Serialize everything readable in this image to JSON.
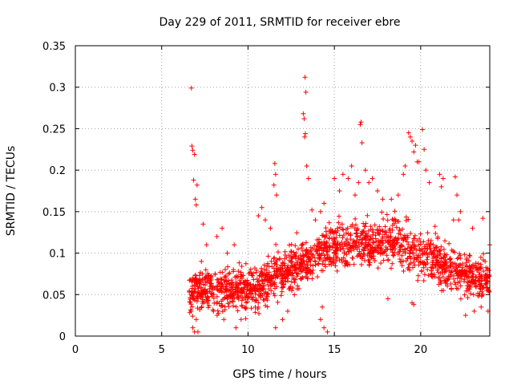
{
  "chart_data": {
    "type": "scatter",
    "title": "Day 229 of 2011, SRMTID for receiver ebre",
    "xlabel": "GPS time / hours",
    "ylabel": "SRMTID / TECUs",
    "xlim": [
      0,
      24
    ],
    "ylim": [
      0,
      0.35
    ],
    "xticks": [
      0,
      5,
      10,
      15,
      20
    ],
    "yticks": [
      0,
      0.05,
      0.1,
      0.15,
      0.2,
      0.25,
      0.3,
      0.35
    ],
    "grid": true,
    "marker": "+",
    "color": "#ff0000",
    "series": [
      {
        "name": "SRMTID",
        "points": [
          [
            6.72,
            0.299
          ],
          [
            6.75,
            0.229
          ],
          [
            6.8,
            0.224
          ],
          [
            6.85,
            0.188
          ],
          [
            6.9,
            0.219
          ],
          [
            6.95,
            0.165
          ],
          [
            7.0,
            0.158
          ],
          [
            7.05,
            0.182
          ],
          [
            6.8,
            0.01
          ],
          [
            6.9,
            0.005
          ],
          [
            7.0,
            0.02
          ],
          [
            7.1,
            0.005
          ],
          [
            7.4,
            0.135
          ],
          [
            7.6,
            0.11
          ],
          [
            7.3,
            0.09
          ],
          [
            7.5,
            0.07
          ],
          [
            8.2,
            0.12
          ],
          [
            8.5,
            0.13
          ],
          [
            8.8,
            0.1
          ],
          [
            9.2,
            0.11
          ],
          [
            8.0,
            0.03
          ],
          [
            8.6,
            0.02
          ],
          [
            9.3,
            0.01
          ],
          [
            9.6,
            0.02
          ],
          [
            10.6,
            0.145
          ],
          [
            10.8,
            0.155
          ],
          [
            11.0,
            0.14
          ],
          [
            11.3,
            0.13
          ],
          [
            11.5,
            0.182
          ],
          [
            11.55,
            0.208
          ],
          [
            11.6,
            0.195
          ],
          [
            11.65,
            0.17
          ],
          [
            11.6,
            0.01
          ],
          [
            12.0,
            0.02
          ],
          [
            12.3,
            0.03
          ],
          [
            13.2,
            0.268
          ],
          [
            13.25,
            0.262
          ],
          [
            13.3,
            0.312
          ],
          [
            13.35,
            0.294
          ],
          [
            13.28,
            0.24
          ],
          [
            13.32,
            0.244
          ],
          [
            13.4,
            0.205
          ],
          [
            13.5,
            0.19
          ],
          [
            13.7,
            0.152
          ],
          [
            13.9,
            0.14
          ],
          [
            14.2,
            0.15
          ],
          [
            14.4,
            0.16
          ],
          [
            14.2,
            0.02
          ],
          [
            14.4,
            0.01
          ],
          [
            14.6,
            0.005
          ],
          [
            14.3,
            0.035
          ],
          [
            15.0,
            0.19
          ],
          [
            15.3,
            0.175
          ],
          [
            15.5,
            0.195
          ],
          [
            15.8,
            0.19
          ],
          [
            16.0,
            0.205
          ],
          [
            16.2,
            0.17
          ],
          [
            16.4,
            0.185
          ],
          [
            16.55,
            0.258
          ],
          [
            16.5,
            0.255
          ],
          [
            16.6,
            0.233
          ],
          [
            16.8,
            0.2
          ],
          [
            17.0,
            0.185
          ],
          [
            17.2,
            0.19
          ],
          [
            17.5,
            0.175
          ],
          [
            17.8,
            0.165
          ],
          [
            18.3,
            0.165
          ],
          [
            18.7,
            0.17
          ],
          [
            19.0,
            0.195
          ],
          [
            19.1,
            0.205
          ],
          [
            19.3,
            0.245
          ],
          [
            19.4,
            0.24
          ],
          [
            19.5,
            0.235
          ],
          [
            19.6,
            0.222
          ],
          [
            19.7,
            0.23
          ],
          [
            19.8,
            0.21
          ],
          [
            19.9,
            0.21
          ],
          [
            20.1,
            0.249
          ],
          [
            20.2,
            0.225
          ],
          [
            20.3,
            0.2
          ],
          [
            20.5,
            0.185
          ],
          [
            19.5,
            0.04
          ],
          [
            19.6,
            0.038
          ],
          [
            18.1,
            0.045
          ],
          [
            21.1,
            0.195
          ],
          [
            21.2,
            0.18
          ],
          [
            21.3,
            0.19
          ],
          [
            22.0,
            0.192
          ],
          [
            22.1,
            0.17
          ],
          [
            22.3,
            0.15
          ],
          [
            21.9,
            0.14
          ],
          [
            22.2,
            0.14
          ],
          [
            23.0,
            0.13
          ],
          [
            23.6,
            0.142
          ],
          [
            24.0,
            0.11
          ],
          [
            22.6,
            0.025
          ],
          [
            23.1,
            0.03
          ],
          [
            23.5,
            0.035
          ],
          [
            23.9,
            0.03
          ]
        ]
      }
    ]
  }
}
